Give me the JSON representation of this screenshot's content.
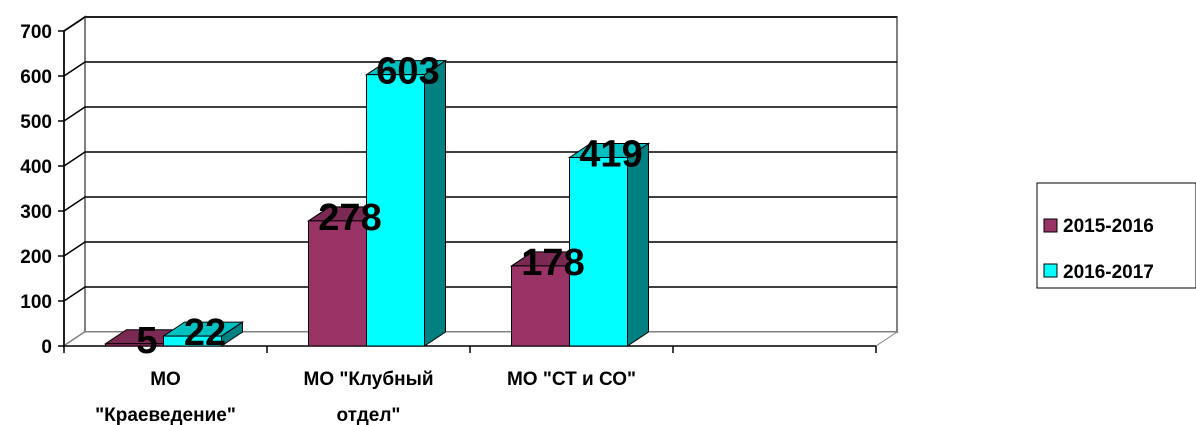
{
  "chart_data": {
    "type": "bar",
    "style": "3d-clustered-column",
    "categories": [
      [
        "МО",
        "\"Краеведение\""
      ],
      [
        "МО \"Клубный",
        "отдел\""
      ],
      [
        "МО \"СТ и СО\""
      ],
      [
        ""
      ]
    ],
    "series": [
      {
        "name": "2015-2016",
        "values": [
          5,
          278,
          178,
          null
        ],
        "color": "#993366",
        "side_color": "#5e1f40",
        "top_color": "#7a2952"
      },
      {
        "name": "2016-2017",
        "values": [
          22,
          603,
          419,
          null
        ],
        "color": "#00ffff",
        "side_color": "#008080",
        "top_color": "#00c0c0"
      }
    ],
    "y_ticks": [
      "0",
      "100",
      "200",
      "300",
      "400",
      "500",
      "600",
      "700"
    ],
    "ylim": [
      0,
      700
    ],
    "grid": true,
    "legend_position": "right",
    "data_labels": true
  }
}
